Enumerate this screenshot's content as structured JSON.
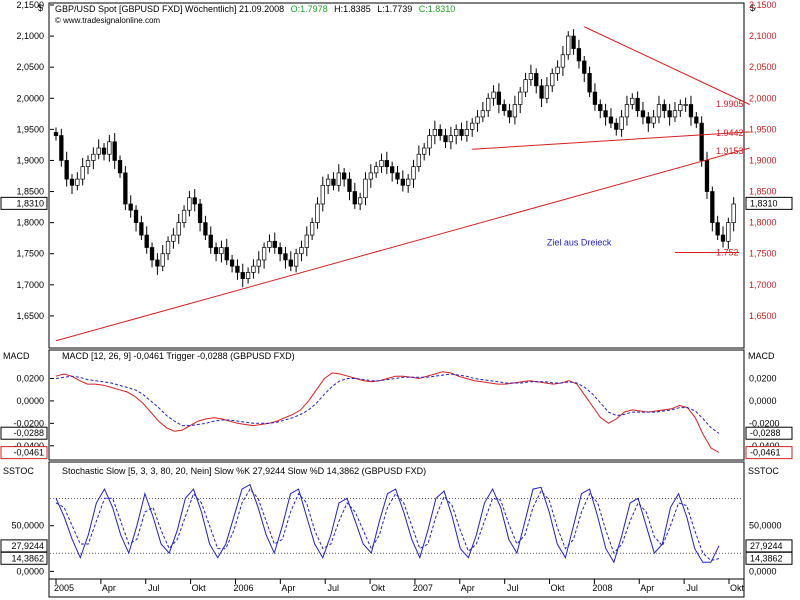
{
  "header": {
    "title": "GBP/USD Spot [GBPUSD FXD]  Wöchentlich] 21.09.2008",
    "open": "O:1.7978",
    "high": "H:1.8385",
    "low": "L:1.7739",
    "close": "C:1.8310",
    "watermark": "© www.tradesignalonline.com",
    "currency_symbol": "$",
    "corner_symbol": "$"
  },
  "colors": {
    "price_line": "#d02020",
    "indicator_blue": "#2020c0",
    "bull": "#ffffff",
    "bear": "#000000",
    "bg": "#ffffff",
    "frame": "#000000"
  },
  "chart_data": [
    {
      "type": "candlestick",
      "title": "GBP/USD Spot [GBPUSD FXD]",
      "ylim": [
        1.6,
        2.15
      ],
      "ticks": [
        "2,1500",
        "2,1000",
        "2,0500",
        "2,0000",
        "1,9500",
        "1,9000",
        "1,8500",
        "1,8000",
        "1,7500",
        "1,7000",
        "1,6500"
      ],
      "tick_values": [
        2.15,
        2.1,
        2.05,
        2.0,
        1.95,
        1.9,
        1.85,
        1.8,
        1.75,
        1.7,
        1.65
      ],
      "last_value_label": "1,8310",
      "last_value": 1.831,
      "close_series": [
        1.94,
        1.9,
        1.87,
        1.86,
        1.87,
        1.89,
        1.9,
        1.91,
        1.92,
        1.91,
        1.93,
        1.9,
        1.88,
        1.83,
        1.82,
        1.8,
        1.78,
        1.76,
        1.74,
        1.73,
        1.75,
        1.77,
        1.78,
        1.8,
        1.82,
        1.84,
        1.83,
        1.8,
        1.78,
        1.76,
        1.75,
        1.76,
        1.74,
        1.73,
        1.72,
        1.71,
        1.72,
        1.73,
        1.74,
        1.76,
        1.77,
        1.76,
        1.75,
        1.74,
        1.73,
        1.75,
        1.76,
        1.78,
        1.8,
        1.83,
        1.86,
        1.87,
        1.86,
        1.88,
        1.87,
        1.85,
        1.83,
        1.84,
        1.87,
        1.88,
        1.89,
        1.9,
        1.89,
        1.88,
        1.87,
        1.86,
        1.87,
        1.89,
        1.91,
        1.92,
        1.94,
        1.95,
        1.94,
        1.93,
        1.94,
        1.95,
        1.94,
        1.95,
        1.96,
        1.97,
        1.98,
        2.0,
        2.01,
        1.99,
        1.98,
        1.97,
        1.99,
        2.01,
        2.03,
        2.04,
        2.02,
        2.0,
        2.02,
        2.04,
        2.05,
        2.07,
        2.1,
        2.08,
        2.06,
        2.04,
        2.01,
        1.99,
        1.98,
        1.97,
        1.96,
        1.95,
        1.97,
        1.99,
        2.0,
        1.98,
        1.97,
        1.96,
        1.97,
        1.99,
        1.98,
        1.97,
        1.98,
        1.99,
        1.99,
        1.97,
        1.96,
        1.9,
        1.85,
        1.8,
        1.78,
        1.77,
        1.8,
        1.83
      ],
      "annotations": [
        {
          "label": "1.9905",
          "value": 1.9905
        },
        {
          "label": "1.9442",
          "value": 1.9442
        },
        {
          "label": "1.9153",
          "value": 1.9153
        },
        {
          "label": "1.752",
          "value": 1.752
        },
        {
          "label": "Ziel aus Dreieck",
          "value": 1.7583
        }
      ],
      "trendlines": [
        {
          "name": "support-uptrend",
          "from": [
            0,
            1.61
          ],
          "to": [
            130,
            1.92
          ]
        },
        {
          "name": "triangle-upper",
          "from": [
            99,
            2.115
          ],
          "to": [
            130,
            1.99
          ]
        },
        {
          "name": "triangle-lower",
          "from": [
            78,
            1.918
          ],
          "to": [
            130,
            1.946
          ]
        },
        {
          "name": "target",
          "from": [
            116,
            1.752
          ],
          "to": [
            128,
            1.752
          ]
        }
      ]
    },
    {
      "type": "line",
      "title": "MACD [12, 26, 9] -0,0461 Trigger -0,0288 (GBPUSD FXD)",
      "axis_label": "MACD",
      "ylim": [
        -0.05,
        0.032
      ],
      "ticks": [
        "0,0200",
        "0,0000",
        "-0,0200",
        "-0,0400"
      ],
      "tick_values": [
        0.02,
        0.0,
        -0.02,
        -0.04
      ],
      "value_labels": [
        {
          "label": "-0,0288",
          "value": -0.0288
        },
        {
          "label": "-0,0461",
          "value": -0.0461
        }
      ],
      "series": [
        {
          "name": "MACD",
          "values": [
            0.022,
            0.024,
            0.022,
            0.018,
            0.015,
            0.015,
            0.014,
            0.012,
            0.01,
            0.008,
            0.004,
            -0.002,
            -0.01,
            -0.018,
            -0.024,
            -0.027,
            -0.026,
            -0.022,
            -0.018,
            -0.016,
            -0.015,
            -0.016,
            -0.018,
            -0.02,
            -0.021,
            -0.022,
            -0.021,
            -0.02,
            -0.018,
            -0.015,
            -0.012,
            -0.008,
            0.0,
            0.01,
            0.02,
            0.025,
            0.024,
            0.022,
            0.02,
            0.018,
            0.017,
            0.018,
            0.02,
            0.022,
            0.022,
            0.021,
            0.02,
            0.022,
            0.024,
            0.026,
            0.025,
            0.022,
            0.02,
            0.018,
            0.017,
            0.016,
            0.015,
            0.015,
            0.016,
            0.017,
            0.018,
            0.017,
            0.016,
            0.015,
            0.016,
            0.018,
            0.015,
            0.005,
            -0.005,
            -0.015,
            -0.02,
            -0.016,
            -0.01,
            -0.008,
            -0.009,
            -0.01,
            -0.009,
            -0.008,
            -0.007,
            -0.004,
            -0.006,
            -0.015,
            -0.03,
            -0.042,
            -0.046
          ]
        },
        {
          "name": "Trigger",
          "values": [
            0.02,
            0.021,
            0.022,
            0.021,
            0.019,
            0.018,
            0.017,
            0.016,
            0.014,
            0.012,
            0.01,
            0.006,
            0.0,
            -0.006,
            -0.013,
            -0.018,
            -0.022,
            -0.022,
            -0.021,
            -0.02,
            -0.018,
            -0.017,
            -0.017,
            -0.018,
            -0.019,
            -0.02,
            -0.02,
            -0.02,
            -0.019,
            -0.017,
            -0.015,
            -0.012,
            -0.008,
            -0.002,
            0.006,
            0.013,
            0.018,
            0.02,
            0.02,
            0.019,
            0.018,
            0.018,
            0.019,
            0.02,
            0.021,
            0.021,
            0.021,
            0.021,
            0.022,
            0.023,
            0.024,
            0.023,
            0.022,
            0.02,
            0.019,
            0.018,
            0.017,
            0.016,
            0.016,
            0.016,
            0.017,
            0.017,
            0.017,
            0.016,
            0.016,
            0.017,
            0.016,
            0.012,
            0.006,
            -0.002,
            -0.01,
            -0.013,
            -0.012,
            -0.01,
            -0.01,
            -0.01,
            -0.01,
            -0.009,
            -0.008,
            -0.006,
            -0.006,
            -0.009,
            -0.016,
            -0.024,
            -0.029
          ]
        }
      ]
    },
    {
      "type": "line",
      "title": "Stochastic Slow [5, 3, 3, 80, 20, Nein] Slow %K 27,9244 Slow %D 14,3862 (GBPUSD FXD)",
      "axis_label": "SSTOC",
      "ylim": [
        -5,
        100
      ],
      "ticks": [
        "50,0000",
        "0,0000"
      ],
      "tick_values": [
        50,
        0
      ],
      "value_labels": [
        {
          "label": "27,9244",
          "value": 27.9244
        },
        {
          "label": "14,3862",
          "value": 14.3862
        }
      ],
      "reference_levels": [
        80,
        20
      ],
      "series": [
        {
          "name": "Slow %K",
          "values": [
            80,
            60,
            35,
            15,
            40,
            75,
            90,
            70,
            40,
            20,
            50,
            85,
            60,
            30,
            20,
            45,
            80,
            90,
            65,
            30,
            15,
            30,
            60,
            90,
            95,
            70,
            40,
            20,
            50,
            85,
            90,
            60,
            30,
            15,
            40,
            75,
            80,
            55,
            30,
            20,
            55,
            85,
            90,
            65,
            35,
            15,
            45,
            80,
            88,
            60,
            25,
            15,
            40,
            75,
            90,
            70,
            35,
            20,
            55,
            90,
            92,
            65,
            30,
            15,
            50,
            85,
            90,
            60,
            25,
            10,
            40,
            75,
            80,
            50,
            20,
            30,
            70,
            85,
            60,
            25,
            10,
            10,
            28
          ]
        },
        {
          "name": "Slow %D",
          "values": [
            75,
            70,
            50,
            30,
            30,
            55,
            80,
            80,
            55,
            30,
            35,
            65,
            70,
            45,
            25,
            35,
            60,
            85,
            75,
            50,
            25,
            25,
            45,
            75,
            90,
            80,
            55,
            30,
            35,
            65,
            85,
            75,
            45,
            25,
            30,
            55,
            75,
            65,
            45,
            25,
            40,
            70,
            85,
            75,
            50,
            25,
            30,
            60,
            82,
            72,
            45,
            22,
            30,
            55,
            80,
            78,
            52,
            30,
            40,
            70,
            88,
            78,
            48,
            25,
            35,
            65,
            85,
            75,
            45,
            20,
            30,
            55,
            75,
            65,
            38,
            28,
            50,
            75,
            72,
            45,
            20,
            12,
            14
          ]
        }
      ]
    }
  ],
  "xaxis": {
    "labels": [
      "2005",
      "Apr",
      "Jul",
      "Okt",
      "2006",
      "Apr",
      "Jul",
      "Okt",
      "2007",
      "Apr",
      "Jul",
      "Okt",
      "2008",
      "Apr",
      "Jul",
      "Okt"
    ]
  }
}
